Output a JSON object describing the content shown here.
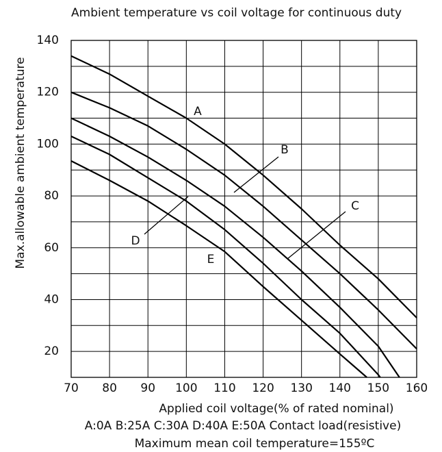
{
  "chart_data": {
    "type": "line",
    "title": "Ambient temperature vs coil voltage for continuous duty",
    "x_label": "Applied coil voltage(% of rated nominal)",
    "y_label": "Max.allowable ambient temperature",
    "notes": [
      "A:0A B:25A C:30A D:40A E:50A Contact load(resistive)",
      "Maximum mean coil temperature=155ºC"
    ],
    "xlim": [
      70,
      160
    ],
    "xticks": [
      70,
      80,
      90,
      100,
      110,
      120,
      130,
      140,
      150,
      160
    ],
    "ylim": [
      10,
      140
    ],
    "yticks": [
      20,
      40,
      60,
      80,
      100,
      120,
      140
    ],
    "minor_yticks": [
      10,
      30,
      50,
      70,
      90,
      110,
      130
    ],
    "grid": true,
    "series": [
      {
        "name": "A",
        "color": "#000000",
        "x": [
          70,
          80,
          90,
          100,
          110,
          120,
          130,
          140,
          150,
          160
        ],
        "values": [
          134,
          127,
          118.5,
          110,
          100,
          88,
          75,
          61,
          48,
          33
        ]
      },
      {
        "name": "B",
        "color": "#000000",
        "x": [
          70,
          80,
          90,
          100,
          110,
          120,
          130,
          140,
          150,
          160
        ],
        "values": [
          120,
          114,
          107,
          98,
          88,
          76,
          63,
          50,
          36,
          21
        ]
      },
      {
        "name": "C",
        "color": "#000000",
        "x": [
          70,
          80,
          90,
          100,
          110,
          120,
          130,
          140,
          150,
          155.5
        ],
        "values": [
          110,
          103,
          95,
          86,
          76,
          64,
          51,
          37,
          22,
          10
        ]
      },
      {
        "name": "D",
        "color": "#000000",
        "x": [
          70,
          80,
          90,
          100,
          110,
          120,
          130,
          140,
          150,
          150.5
        ],
        "values": [
          103,
          96,
          87,
          78,
          67,
          54,
          40,
          27,
          11,
          10
        ]
      },
      {
        "name": "E",
        "color": "#000000",
        "x": [
          70,
          80,
          90,
          100,
          110,
          120,
          130,
          140,
          147
        ],
        "values": [
          93.5,
          86,
          78,
          68.5,
          58.5,
          45,
          32,
          19,
          10
        ]
      }
    ]
  }
}
